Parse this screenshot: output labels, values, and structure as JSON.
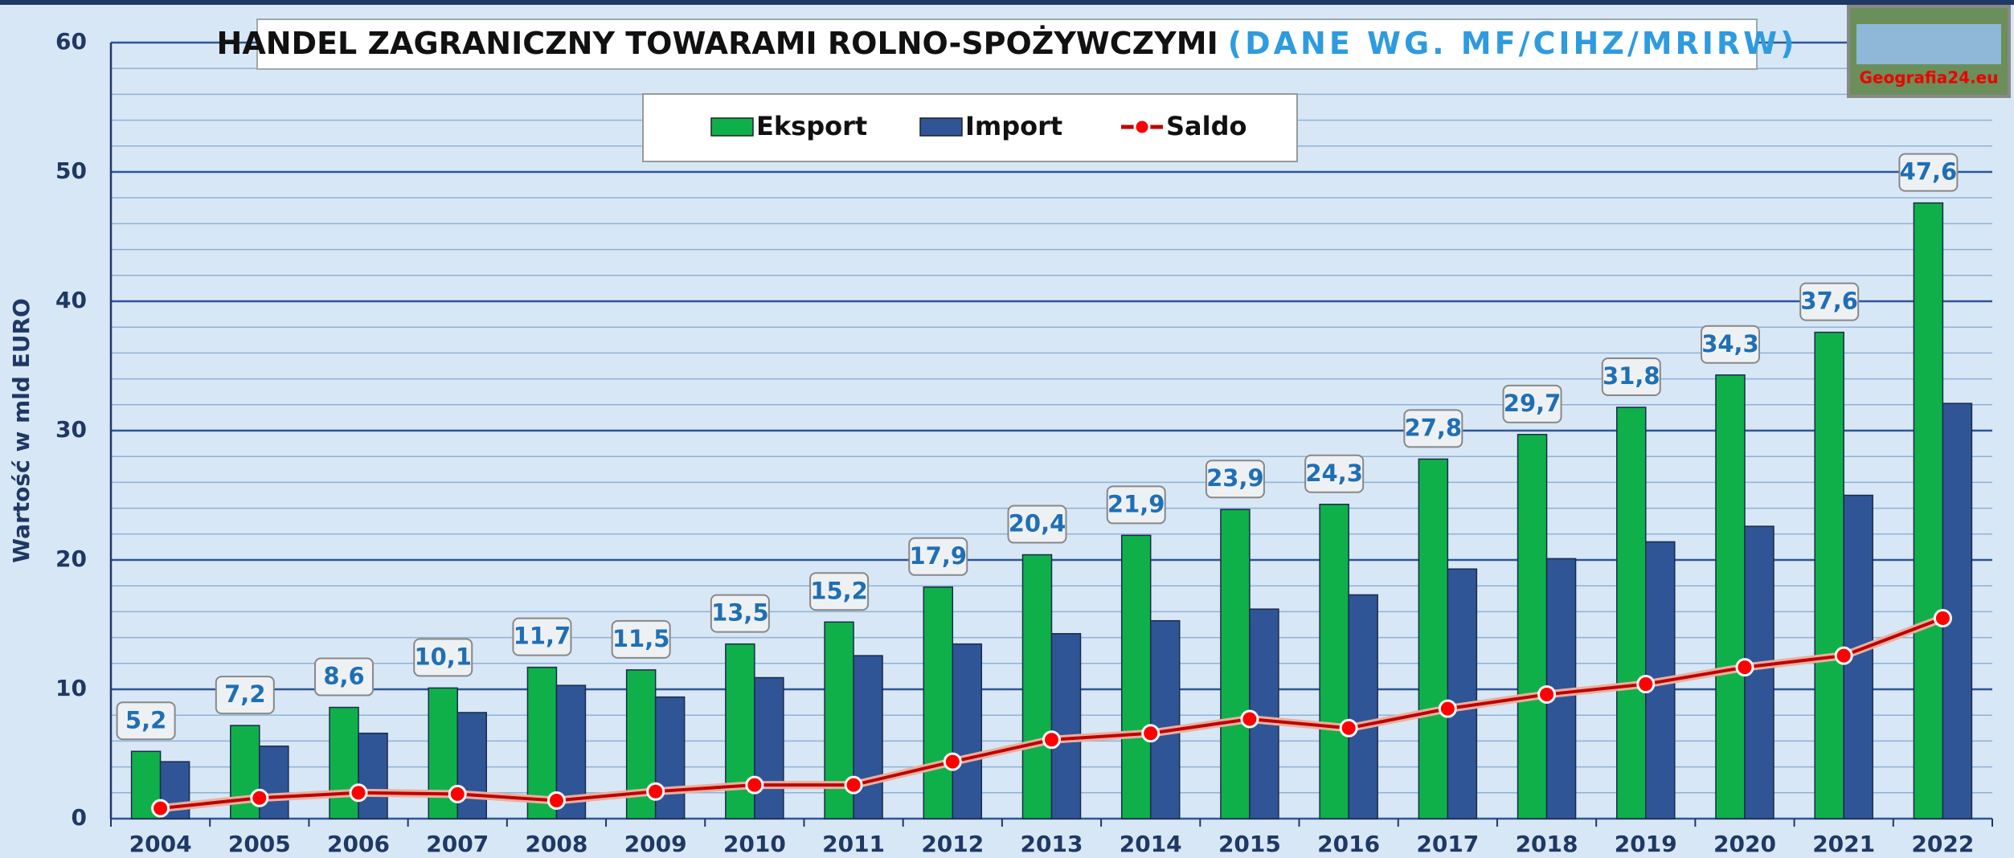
{
  "chart_data": {
    "type": "bar",
    "title": "HANDEL ZAGRANICZNY TOWARAMI ROLNO-SPOŻYWCZYMI",
    "subtitle": "(DANE WG. MF/CIHZ/MRIRW)",
    "y_label": "Wartość w mld EURO",
    "logo": "Geografia24.eu",
    "categories": [
      "2004",
      "2005",
      "2006",
      "2007",
      "2008",
      "2009",
      "2010",
      "2011",
      "2012",
      "2013",
      "2014",
      "2015",
      "2016",
      "2017",
      "2018",
      "2019",
      "2020",
      "2021",
      "2022"
    ],
    "series": [
      {
        "name": "Eksport",
        "type": "bar",
        "color": "#0fb04a",
        "values": [
          5.2,
          7.2,
          8.6,
          10.1,
          11.7,
          11.5,
          13.5,
          15.2,
          17.9,
          20.4,
          21.9,
          23.9,
          24.3,
          27.8,
          29.7,
          31.8,
          34.3,
          37.6,
          47.6
        ],
        "value_labels": [
          "5,2",
          "7,2",
          "8,6",
          "10,1",
          "11,7",
          "11,5",
          "13,5",
          "15,2",
          "17,9",
          "20,4",
          "21,9",
          "23,9",
          "24,3",
          "27,8",
          "29,7",
          "31,8",
          "34,3",
          "37,6",
          "47,6"
        ]
      },
      {
        "name": "Import",
        "type": "bar",
        "color": "#2f5597",
        "values": [
          4.4,
          5.6,
          6.6,
          8.2,
          10.3,
          9.4,
          10.9,
          12.6,
          13.5,
          14.3,
          15.3,
          16.2,
          17.3,
          19.3,
          20.1,
          21.4,
          22.6,
          25.0,
          32.1
        ]
      },
      {
        "name": "Saldo",
        "type": "line",
        "color": "#c00000",
        "values": [
          0.8,
          1.6,
          2.0,
          1.9,
          1.4,
          2.1,
          2.6,
          2.6,
          4.4,
          6.1,
          6.6,
          7.7,
          7.0,
          8.5,
          9.6,
          10.4,
          11.7,
          12.6,
          15.5
        ]
      }
    ],
    "ylim": [
      0,
      60
    ],
    "yticks": [
      0,
      10,
      20,
      30,
      40,
      50,
      60
    ],
    "grid": true
  }
}
